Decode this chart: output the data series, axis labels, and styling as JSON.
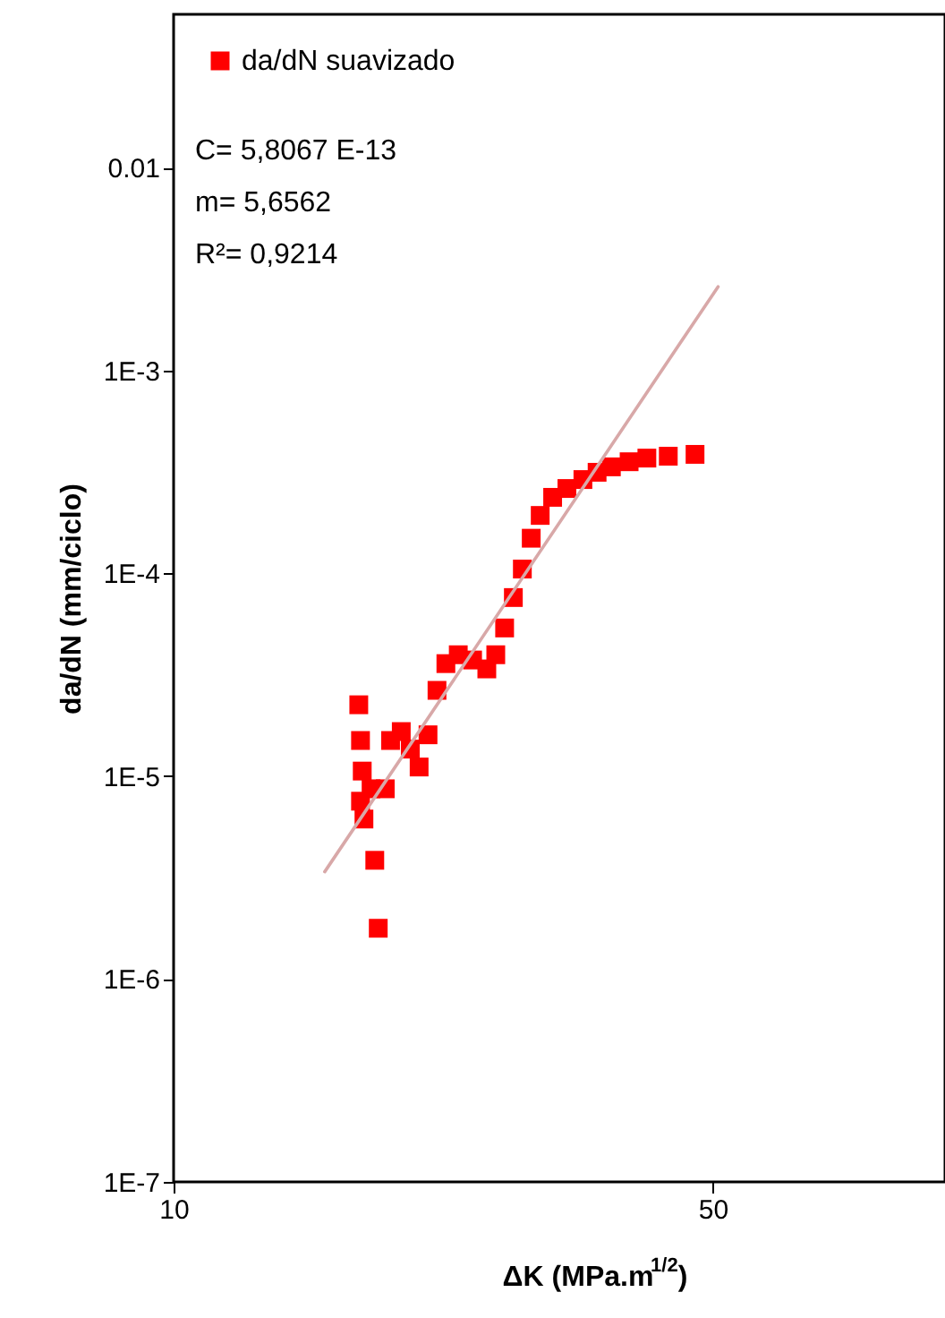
{
  "chart_data": {
    "type": "scatter",
    "xlabel": "ΔK (MPa.m$^{1/2}$)",
    "ylabel": "da/dN (mm/ciclo)",
    "log": "xy",
    "grid": false,
    "legend": "top left",
    "xlim": [
      10,
      100
    ],
    "xticks": [
      10,
      50
    ],
    "ylim": [
      1e-07,
      0.057
    ],
    "yticks": [
      {
        "value": 1e-07,
        "label": "1E-7"
      },
      {
        "value": 1e-06,
        "label": "1E-6"
      },
      {
        "value": 1e-05,
        "label": "1E-5"
      },
      {
        "value": 0.0001,
        "label": "1E-4"
      },
      {
        "value": 0.001,
        "label": "1E-3"
      },
      0.01
    ],
    "annotations": [
      "C= 5,8067 E-13",
      "m= 5,6562",
      "R²= 0,9214"
    ],
    "series": [
      {
        "type": "line",
        "color": "#d8a8a8",
        "marker": "none",
        "line_style": "solid",
        "x": [
          15.7,
          50.8
        ],
        "values": [
          3.38e-06,
          0.00259
        ]
      },
      {
        "name": "da/dN suavizado",
        "color": "#ff0000",
        "marker": "square",
        "x": [
          17.38,
          17.47,
          17.56,
          17.47,
          17.65,
          18.03,
          18.23,
          18.42,
          18.81,
          19.11,
          19.73,
          20.27,
          20.81,
          21.37,
          21.95,
          22.54,
          23.39,
          24.41,
          25.47,
          26.16,
          26.86,
          27.57,
          28.32,
          29.08,
          29.87,
          31.0,
          32.35,
          33.93,
          35.4,
          36.94,
          38.95,
          41.07,
          43.78,
          47.42
        ],
        "values": [
          2.25e-05,
          1.5e-05,
          1.06e-05,
          7.53e-06,
          6.15e-06,
          8.67e-06,
          3.85e-06,
          1.78e-06,
          8.67e-06,
          1.5e-05,
          1.66e-05,
          1.36e-05,
          1.11e-05,
          1.6e-05,
          2.65e-05,
          3.59e-05,
          3.97e-05,
          3.74e-05,
          3.38e-05,
          3.97e-05,
          5.38e-05,
          7.6e-05,
          0.000105,
          0.000149,
          0.000193,
          0.000237,
          0.000262,
          0.00029,
          0.000315,
          0.000335,
          0.000355,
          0.00037,
          0.000378,
          0.000386
        ]
      }
    ]
  }
}
